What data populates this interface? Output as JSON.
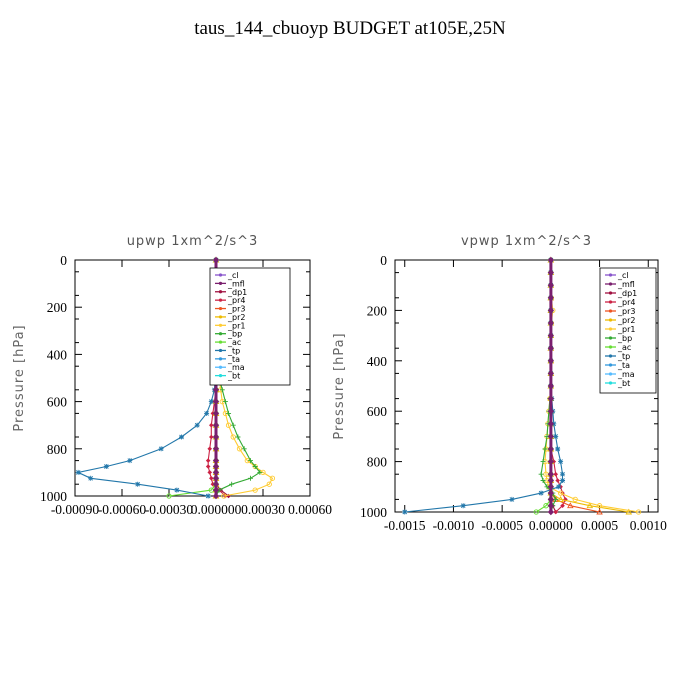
{
  "figure_title": "taus_144_cbuoyp  BUDGET at105E,25N",
  "chart_data": [
    {
      "type": "line",
      "title": "upwp   1xm^2/s^3",
      "ylabel": "Pressure [hPa]",
      "xlabel": "",
      "xlim": [
        -0.0009,
        0.0006
      ],
      "ylim": [
        1000,
        0
      ],
      "y_inverted": true,
      "xticks": [
        -0.0009,
        -0.0006,
        -0.0003,
        0.0,
        0.0003,
        0.0006
      ],
      "xtick_labels": [
        "-0.00090",
        "-0.00060",
        "-0.00030",
        "0.000000",
        "0.00030",
        "0.00060"
      ],
      "yticks": [
        0,
        200,
        400,
        600,
        800,
        1000
      ],
      "ytick_labels": [
        "0",
        "200",
        "400",
        "600",
        "800",
        "1000"
      ],
      "legend_position": "upper-right inside",
      "pressure": [
        0,
        50,
        100,
        150,
        200,
        250,
        300,
        350,
        400,
        450,
        500,
        550,
        600,
        650,
        700,
        750,
        800,
        850,
        875,
        900,
        925,
        950,
        975,
        1000
      ],
      "series": [
        {
          "name": "_cl",
          "color": "#8855cc",
          "marker": "diamond",
          "values": [
            0,
            0,
            0,
            0,
            0,
            0,
            0,
            0,
            0,
            0,
            0,
            0,
            0,
            0,
            0,
            0,
            0,
            0,
            0,
            0,
            0,
            0,
            0,
            0
          ]
        },
        {
          "name": "_mfl",
          "color": "#7a1f6e",
          "marker": "diamond",
          "values": [
            0,
            0,
            5e-06,
            5e-06,
            0,
            0,
            0,
            0,
            0,
            0,
            0,
            0,
            0,
            0,
            0,
            0,
            0,
            0,
            0,
            0,
            0,
            0,
            0,
            0
          ]
        },
        {
          "name": "_dp1",
          "color": "#a01040",
          "marker": "diamond",
          "values": [
            0,
            0,
            0,
            0,
            0,
            0,
            0,
            0,
            0,
            0,
            0,
            0,
            0,
            0,
            0,
            0,
            0,
            0,
            0,
            0,
            0,
            0,
            3e-05,
            8e-05
          ]
        },
        {
          "name": "_pr4",
          "color": "#cc2244",
          "marker": "diamond",
          "values": [
            0,
            0,
            0,
            0,
            0,
            0,
            0,
            0,
            0,
            0,
            0,
            0,
            -1e-05,
            -2e-05,
            -3e-05,
            -3e-05,
            -4e-05,
            -5e-05,
            -5e-05,
            -4e-05,
            -3e-05,
            -2e-05,
            2e-05,
            6e-05
          ]
        },
        {
          "name": "_pr3",
          "color": "#ee5522",
          "marker": "triangle",
          "values": [
            0,
            0,
            0,
            0,
            0,
            0,
            0,
            0,
            0,
            0,
            0,
            0,
            0,
            0,
            0,
            0,
            0,
            0,
            0,
            0,
            0,
            0,
            0,
            0
          ]
        },
        {
          "name": "_pr2",
          "color": "#eebb00",
          "marker": "triangle",
          "values": [
            0,
            0,
            0,
            0,
            0,
            0,
            0,
            0,
            0,
            0,
            0,
            0,
            0,
            0,
            0,
            0,
            0,
            0,
            0,
            0,
            0,
            0,
            0,
            0
          ]
        },
        {
          "name": "_pr1",
          "color": "#ffcc33",
          "marker": "circle",
          "values": [
            0,
            0,
            -5e-06,
            -5e-06,
            0,
            0,
            0,
            0,
            5e-06,
            1e-05,
            2e-05,
            3e-05,
            4e-05,
            6e-05,
            8e-05,
            0.00011,
            0.00015,
            0.0002,
            0.00025,
            0.0003,
            0.00036,
            0.00034,
            0.00025,
            5e-05
          ]
        },
        {
          "name": "_bp",
          "color": "#33aa33",
          "marker": "plus",
          "values": [
            0,
            0,
            -1e-05,
            -2e-05,
            -1e-05,
            0,
            0,
            0,
            5e-06,
            1e-05,
            2e-05,
            4e-05,
            6e-05,
            8e-05,
            0.00011,
            0.00014,
            0.00018,
            0.00022,
            0.00025,
            0.00028,
            0.00022,
            0.0001,
            2e-05,
            0
          ]
        },
        {
          "name": "_ac",
          "color": "#66dd33",
          "marker": "circle",
          "values": [
            0,
            0,
            -1e-05,
            -2e-05,
            -1e-05,
            0,
            0,
            0,
            0,
            0,
            0,
            0,
            0,
            0,
            0,
            0,
            0,
            0,
            0,
            0,
            0,
            0,
            -3e-05,
            -0.0003
          ]
        },
        {
          "name": "_tp",
          "color": "#2277aa",
          "marker": "asterisk",
          "values": [
            0,
            0,
            0,
            0,
            0,
            0,
            0,
            0,
            0,
            0,
            -5e-06,
            -1e-05,
            -3e-05,
            -6e-05,
            -0.00012,
            -0.00022,
            -0.00035,
            -0.00055,
            -0.0007,
            -0.00088,
            -0.0008,
            -0.0005,
            -0.00025,
            -5e-05
          ]
        },
        {
          "name": "_ta",
          "color": "#3399dd",
          "marker": "arrow",
          "values": [
            0,
            0,
            2e-05,
            4e-05,
            2e-05,
            0,
            0,
            0,
            0,
            0,
            0,
            0,
            0,
            0,
            0,
            0,
            0,
            0,
            0,
            0,
            0,
            0,
            0,
            0
          ]
        },
        {
          "name": "_ma",
          "color": "#55bbff",
          "marker": "dash",
          "values": [
            0,
            0,
            0,
            0,
            0,
            0,
            0,
            0,
            0,
            0,
            0,
            0,
            0,
            0,
            0,
            0,
            0,
            0,
            0,
            0,
            0,
            0,
            0,
            0
          ]
        },
        {
          "name": "_bt",
          "color": "#22dddd",
          "marker": "diamond",
          "values": [
            0,
            0,
            0,
            0,
            0,
            0,
            0,
            0,
            0,
            0,
            0,
            0,
            0,
            0,
            0,
            0,
            0,
            0,
            0,
            0,
            0,
            0,
            0,
            0
          ]
        }
      ]
    },
    {
      "type": "line",
      "title": "vpwp   1xm^2/s^3",
      "ylabel": "Pressure [hPa]",
      "xlabel": "",
      "xlim": [
        -0.0016,
        0.0011
      ],
      "ylim": [
        1000,
        0
      ],
      "y_inverted": true,
      "xticks": [
        -0.0015,
        -0.001,
        -0.0005,
        0.0,
        0.0005,
        0.001
      ],
      "xtick_labels": [
        "-0.0015",
        "-0.0010",
        "-0.0005",
        "0.00000",
        "0.0005",
        "0.0010"
      ],
      "yticks": [
        0,
        200,
        400,
        600,
        800,
        1000
      ],
      "ytick_labels": [
        "0",
        "200",
        "400",
        "600",
        "800",
        "1000"
      ],
      "legend_position": "upper-right inside",
      "pressure": [
        0,
        50,
        100,
        150,
        200,
        250,
        300,
        350,
        400,
        450,
        500,
        550,
        600,
        650,
        700,
        750,
        800,
        850,
        875,
        900,
        925,
        950,
        975,
        1000
      ],
      "series": [
        {
          "name": "_cl",
          "color": "#8855cc",
          "marker": "diamond",
          "values": [
            0,
            0,
            0,
            0,
            0,
            0,
            0,
            0,
            0,
            0,
            0,
            0,
            0,
            0,
            0,
            0,
            0,
            0,
            0,
            0,
            0,
            0,
            0,
            0
          ]
        },
        {
          "name": "_mfl",
          "color": "#7a1f6e",
          "marker": "diamond",
          "values": [
            0,
            0,
            0,
            0,
            0,
            0,
            0,
            0,
            0,
            0,
            0,
            0,
            0,
            0,
            0,
            0,
            0,
            0,
            0,
            0,
            0,
            0,
            0,
            0
          ]
        },
        {
          "name": "_dp1",
          "color": "#a01040",
          "marker": "diamond",
          "values": [
            0,
            0,
            0,
            0,
            0,
            0,
            0,
            0,
            0,
            0,
            0,
            0,
            0,
            0,
            0,
            0,
            0,
            0,
            0,
            0,
            0,
            0,
            2e-05,
            5e-05
          ]
        },
        {
          "name": "_pr4",
          "color": "#cc2244",
          "marker": "diamond",
          "values": [
            0,
            0,
            0,
            0,
            0,
            0,
            0,
            0,
            0,
            0,
            0,
            0,
            0,
            0,
            0,
            0,
            3e-05,
            5e-05,
            7e-05,
            0.0001,
            0.00012,
            0.00015,
            0.00012,
            5e-05
          ]
        },
        {
          "name": "_pr3",
          "color": "#ee5522",
          "marker": "triangle",
          "values": [
            0,
            0,
            0,
            0,
            0,
            0,
            0,
            0,
            0,
            0,
            0,
            0,
            0,
            0,
            0,
            0,
            0,
            0,
            0,
            0,
            0,
            5e-05,
            0.0002,
            0.0005
          ]
        },
        {
          "name": "_pr2",
          "color": "#eebb00",
          "marker": "triangle",
          "values": [
            0,
            0,
            0,
            0,
            0,
            0,
            0,
            0,
            0,
            0,
            0,
            0,
            0,
            0,
            0,
            0,
            0,
            0,
            0,
            0,
            0,
            0.0001,
            0.0004,
            0.0008
          ]
        },
        {
          "name": "_pr1",
          "color": "#ffcc33",
          "marker": "circle",
          "values": [
            0,
            0,
            0,
            5e-06,
            2e-05,
            5e-06,
            0,
            0,
            0,
            0,
            0,
            -1e-05,
            -2e-05,
            -3e-05,
            -4e-05,
            -5e-05,
            -6e-05,
            -5e-05,
            -4e-05,
            -2e-05,
            0.0001,
            0.00025,
            0.0005,
            0.0009
          ]
        },
        {
          "name": "_bp",
          "color": "#33aa33",
          "marker": "plus",
          "values": [
            0,
            0,
            0,
            0,
            0,
            0,
            0,
            0,
            0,
            0,
            0,
            -1e-05,
            -2e-05,
            -3e-05,
            -4e-05,
            -6e-05,
            -8e-05,
            -0.0001,
            -8e-05,
            -4e-05,
            2e-05,
            5e-05,
            2e-05,
            0
          ]
        },
        {
          "name": "_ac",
          "color": "#66dd33",
          "marker": "circle",
          "values": [
            0,
            0,
            0,
            0,
            0,
            0,
            0,
            0,
            0,
            0,
            0,
            0,
            0,
            0,
            0,
            0,
            0,
            0,
            0,
            0,
            0,
            0,
            -5e-05,
            -0.00015
          ]
        },
        {
          "name": "_tp",
          "color": "#2277aa",
          "marker": "asterisk",
          "values": [
            0,
            0,
            0,
            0,
            0,
            0,
            0,
            0,
            0,
            0,
            0,
            1e-05,
            2e-05,
            3e-05,
            5e-05,
            7e-05,
            0.0001,
            0.00012,
            0.00012,
            8e-05,
            -0.0001,
            -0.0004,
            -0.0009,
            -0.0015
          ]
        },
        {
          "name": "_ta",
          "color": "#3399dd",
          "marker": "arrow",
          "values": [
            0,
            0,
            0,
            0,
            0,
            0,
            0,
            0,
            0,
            0,
            0,
            0,
            0,
            0,
            0,
            0,
            0,
            0,
            0,
            0,
            0,
            0,
            0,
            0
          ]
        },
        {
          "name": "_ma",
          "color": "#55bbff",
          "marker": "dash",
          "values": [
            0,
            0,
            0,
            0,
            0,
            0,
            0,
            0,
            0,
            0,
            0,
            0,
            0,
            0,
            0,
            0,
            0,
            0,
            0,
            0,
            0,
            0,
            0,
            0
          ]
        },
        {
          "name": "_bt",
          "color": "#22dddd",
          "marker": "diamond",
          "values": [
            0,
            0,
            0,
            0,
            0,
            0,
            0,
            0,
            0,
            0,
            0,
            0,
            0,
            0,
            0,
            0,
            0,
            0,
            0,
            0,
            0,
            0,
            0,
            0
          ]
        }
      ]
    }
  ]
}
